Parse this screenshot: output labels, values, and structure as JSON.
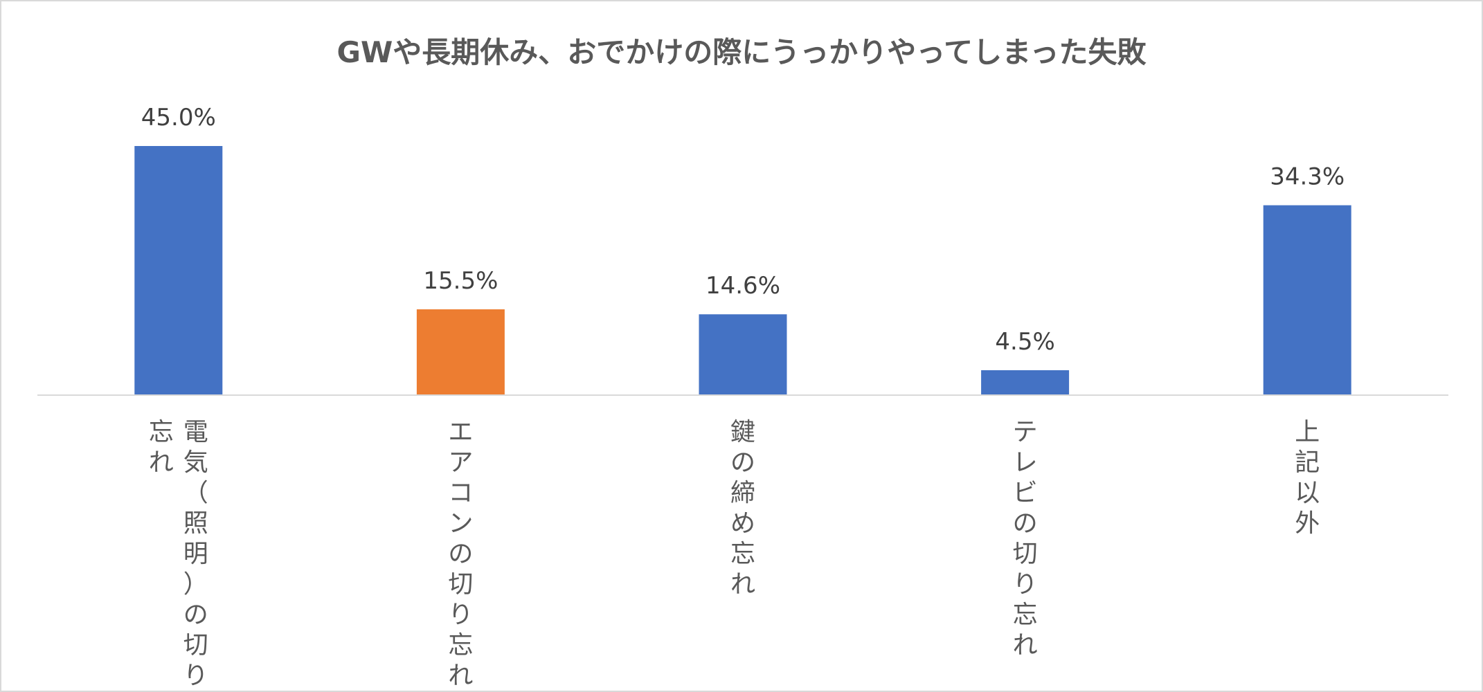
{
  "chart_data": {
    "type": "bar",
    "title": "GWや長期休み、おでかけの際にうっかりやってしまった失敗",
    "categories": [
      "電気（照明）の切り忘れ",
      "エアコンの切り忘れ",
      "鍵の締め忘れ",
      "テレビの切り忘れ",
      "上記以外"
    ],
    "category_label_columns": [
      [
        "電気（照明）の切り",
        "忘れ"
      ],
      [
        "エアコンの切り忘れ"
      ],
      [
        "鍵の締め忘れ"
      ],
      [
        "テレビの切り忘れ"
      ],
      [
        "上記以外"
      ]
    ],
    "values": [
      45.0,
      15.5,
      14.6,
      4.5,
      34.3
    ],
    "data_labels": [
      "45.0%",
      "15.5%",
      "14.6%",
      "4.5%",
      "34.3%"
    ],
    "bar_colors": [
      "#4472C4",
      "#ED7D31",
      "#4472C4",
      "#4472C4",
      "#4472C4"
    ],
    "axis_color": "#d9d9d9",
    "ylim": [
      0,
      45.0
    ],
    "xlabel": "",
    "ylabel": "",
    "grid": false,
    "legend": "none",
    "category_label_orientation": "vertical"
  }
}
